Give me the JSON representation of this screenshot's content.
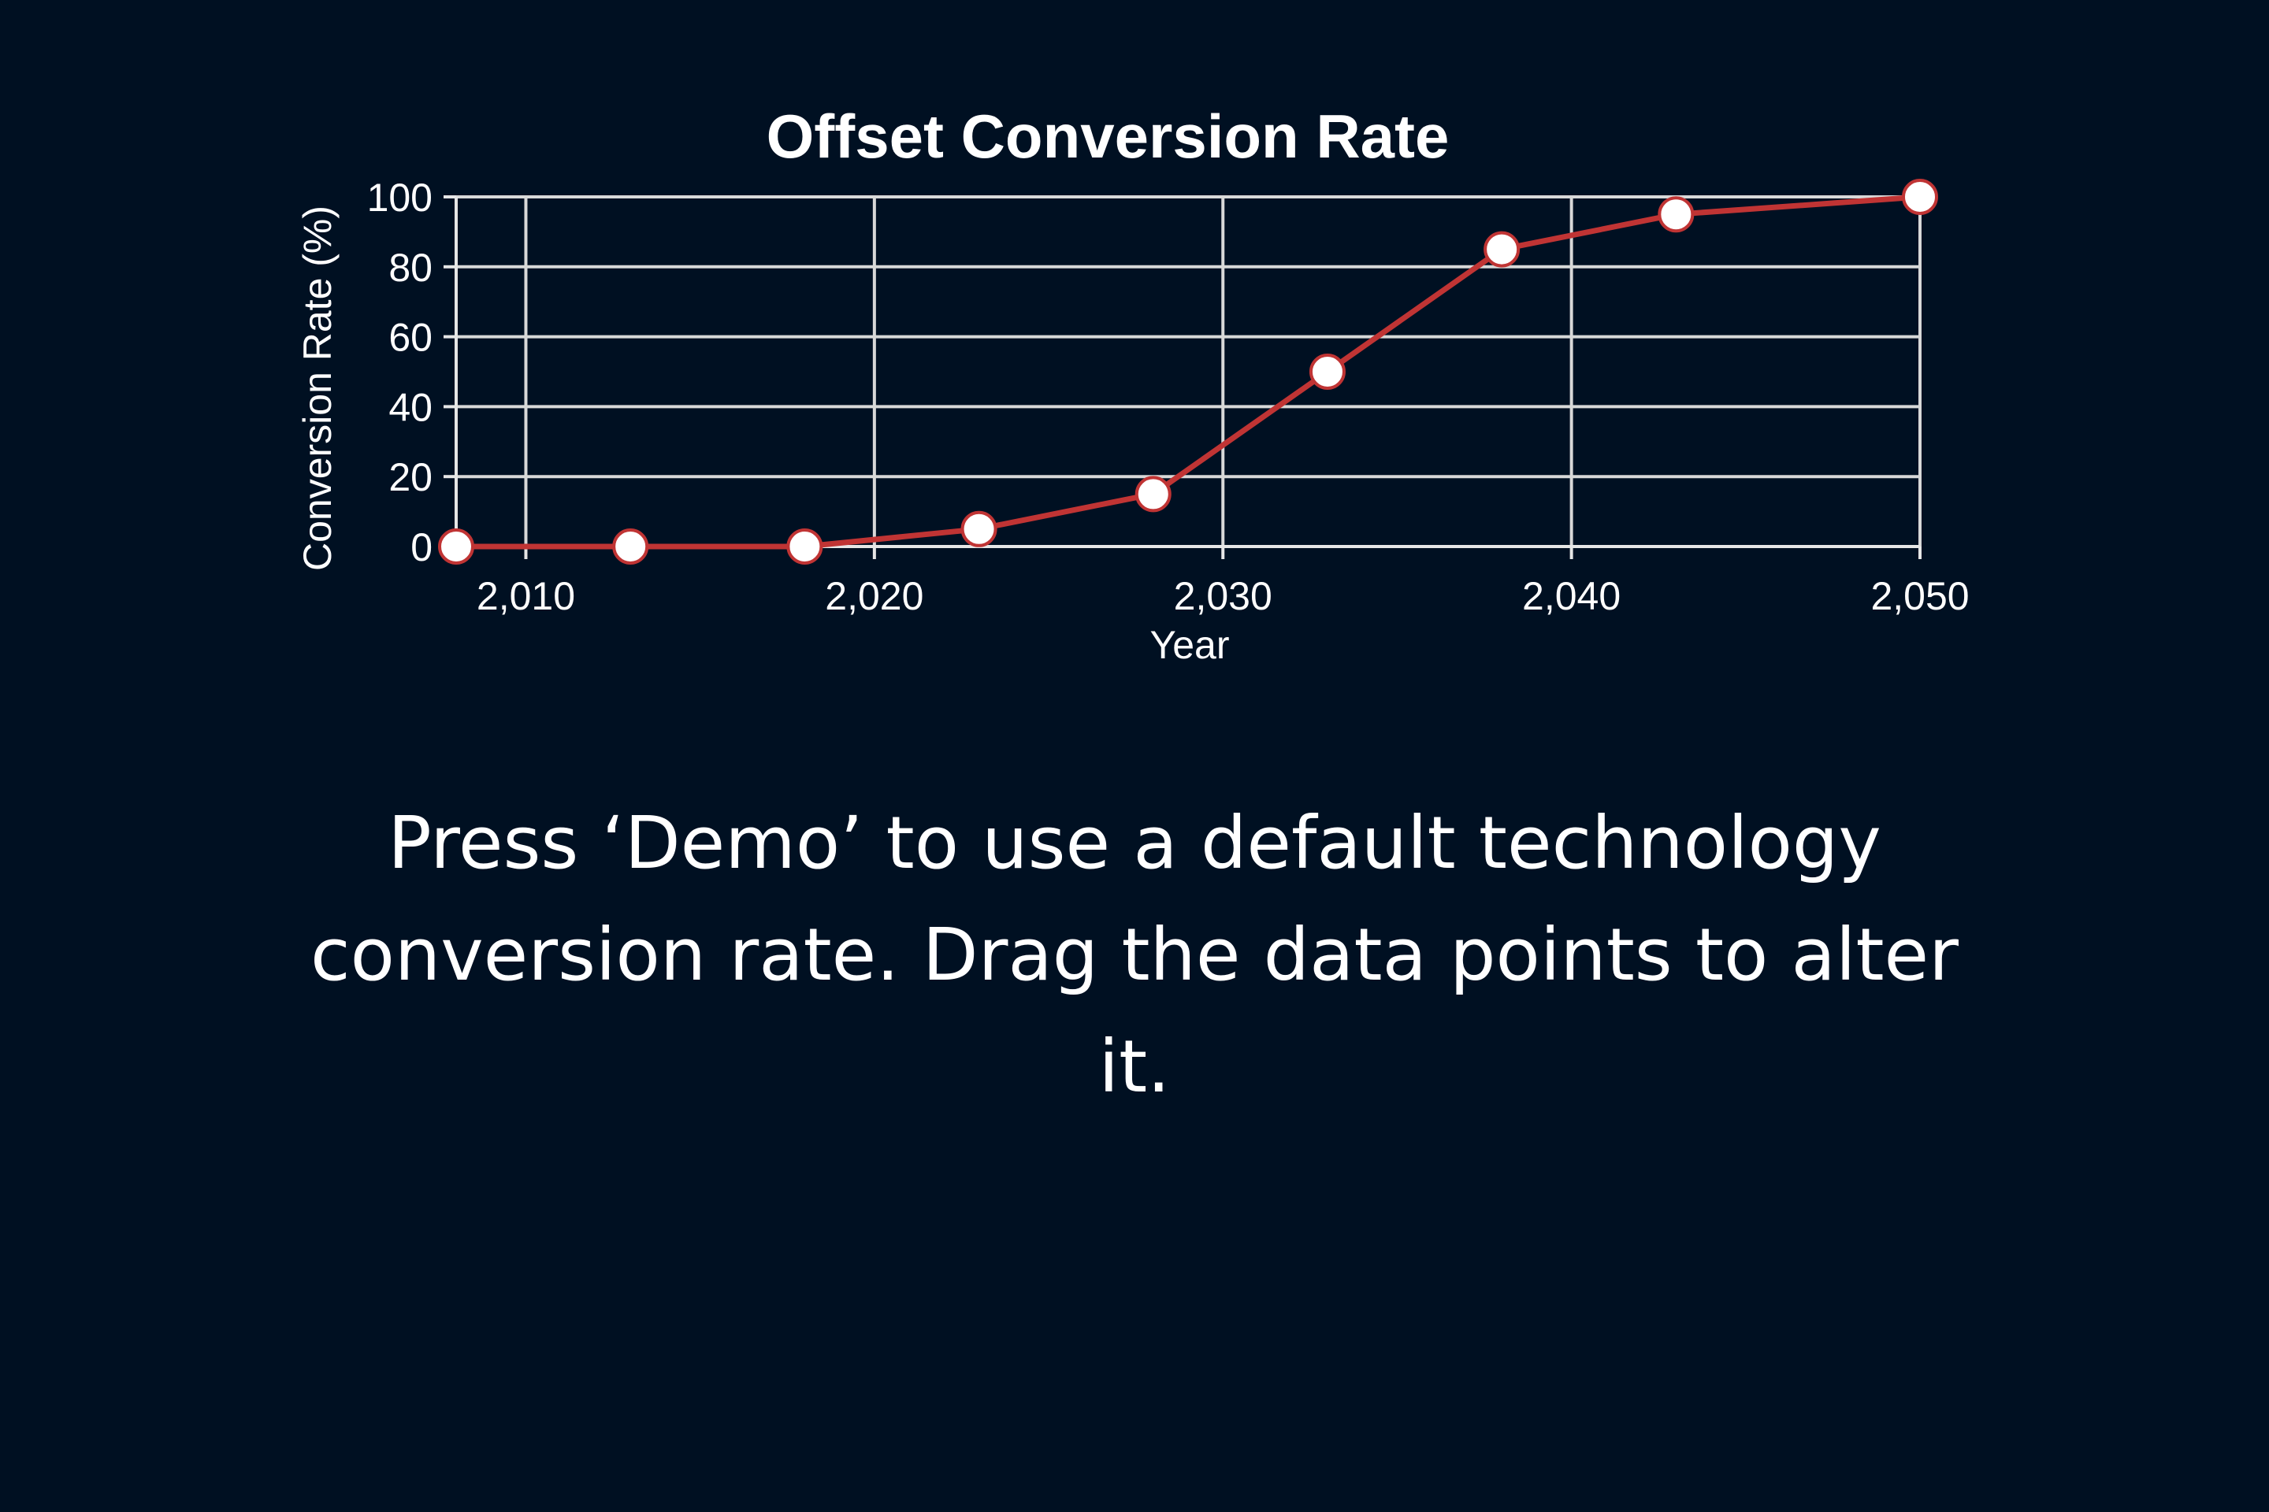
{
  "chart_data": {
    "type": "line",
    "title": "Offset Conversion Rate",
    "xlabel": "Year",
    "ylabel": "Conversion Rate (%)",
    "xlim": [
      2008,
      2050
    ],
    "ylim": [
      0,
      100
    ],
    "x_ticks": [
      2010,
      2020,
      2030,
      2040,
      2050
    ],
    "x_tick_labels": [
      "2,010",
      "2,020",
      "2,030",
      "2,040",
      "2,050"
    ],
    "y_ticks": [
      0,
      20,
      40,
      60,
      80,
      100
    ],
    "y_tick_labels": [
      "0",
      "20",
      "40",
      "60",
      "80",
      "100"
    ],
    "grid": true,
    "series": [
      {
        "color": "#c03434",
        "x": [
          2008,
          2013,
          2018,
          2023,
          2028,
          2033,
          2038,
          2043,
          2050
        ],
        "y": [
          0,
          0,
          0,
          5,
          15,
          50,
          85,
          95,
          100
        ]
      }
    ]
  },
  "instruction_text": "Press ‘Demo’ to use a default technology conversion rate. Drag the data points to alter it."
}
